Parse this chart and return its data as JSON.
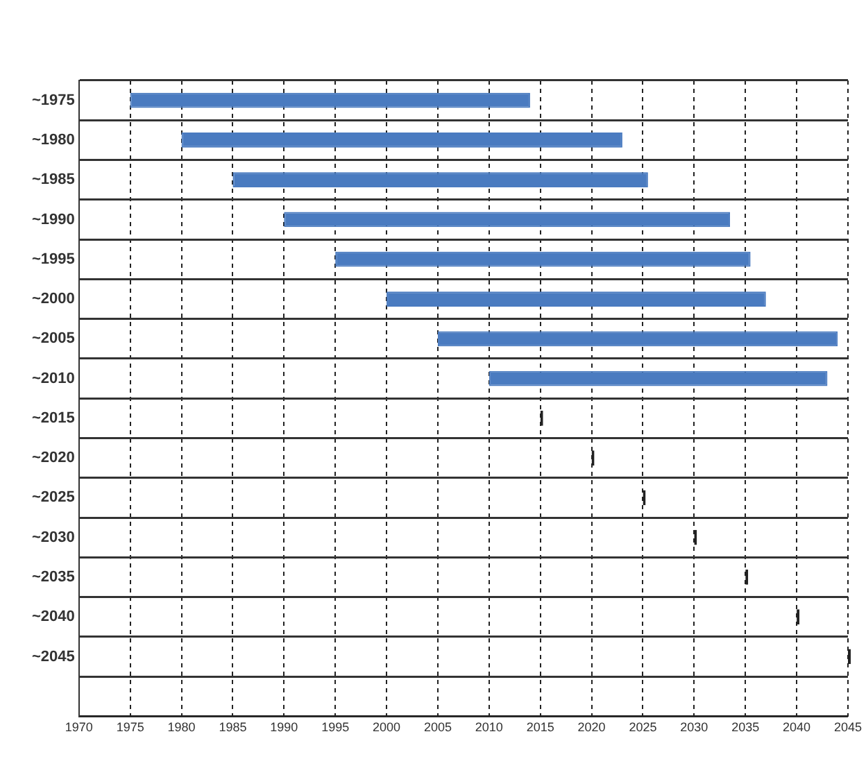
{
  "chart_data": {
    "type": "bar",
    "orientation": "horizontal",
    "categories": [
      "~1975",
      "~1980",
      "~1985",
      "~1990",
      "~1995",
      "~2000",
      "~2005",
      "~2010",
      "~2015",
      "~2020",
      "~2025",
      "~2030",
      "~2035",
      "~2040",
      "~2045",
      null
    ],
    "base": [
      1975,
      1980,
      1985,
      1990,
      1995,
      2000,
      2005,
      2010,
      2015,
      2020,
      2025,
      2030,
      2035,
      2040,
      2045,
      null
    ],
    "values": [
      39,
      43,
      40.5,
      43.5,
      40.5,
      37,
      39,
      33,
      0,
      0,
      0,
      0,
      0,
      0,
      0,
      null
    ],
    "colors": [
      "#4a7bc0",
      "#4a7bc0",
      "#4a7bc0",
      "#4a7bc0",
      "#4a7bc0",
      "#4a7bc0",
      "#4a7bc0",
      "#4a7bc0",
      "#222222",
      "#222222",
      "#222222",
      "#222222",
      "#222222",
      "#222222",
      "#222222",
      null
    ],
    "xlim": [
      1970,
      2045
    ],
    "xticks": [
      1970,
      1975,
      1980,
      1985,
      1990,
      1995,
      2000,
      2005,
      2010,
      2015,
      2020,
      2025,
      2030,
      2035,
      2040,
      2045
    ],
    "grid": true,
    "legend": false
  }
}
